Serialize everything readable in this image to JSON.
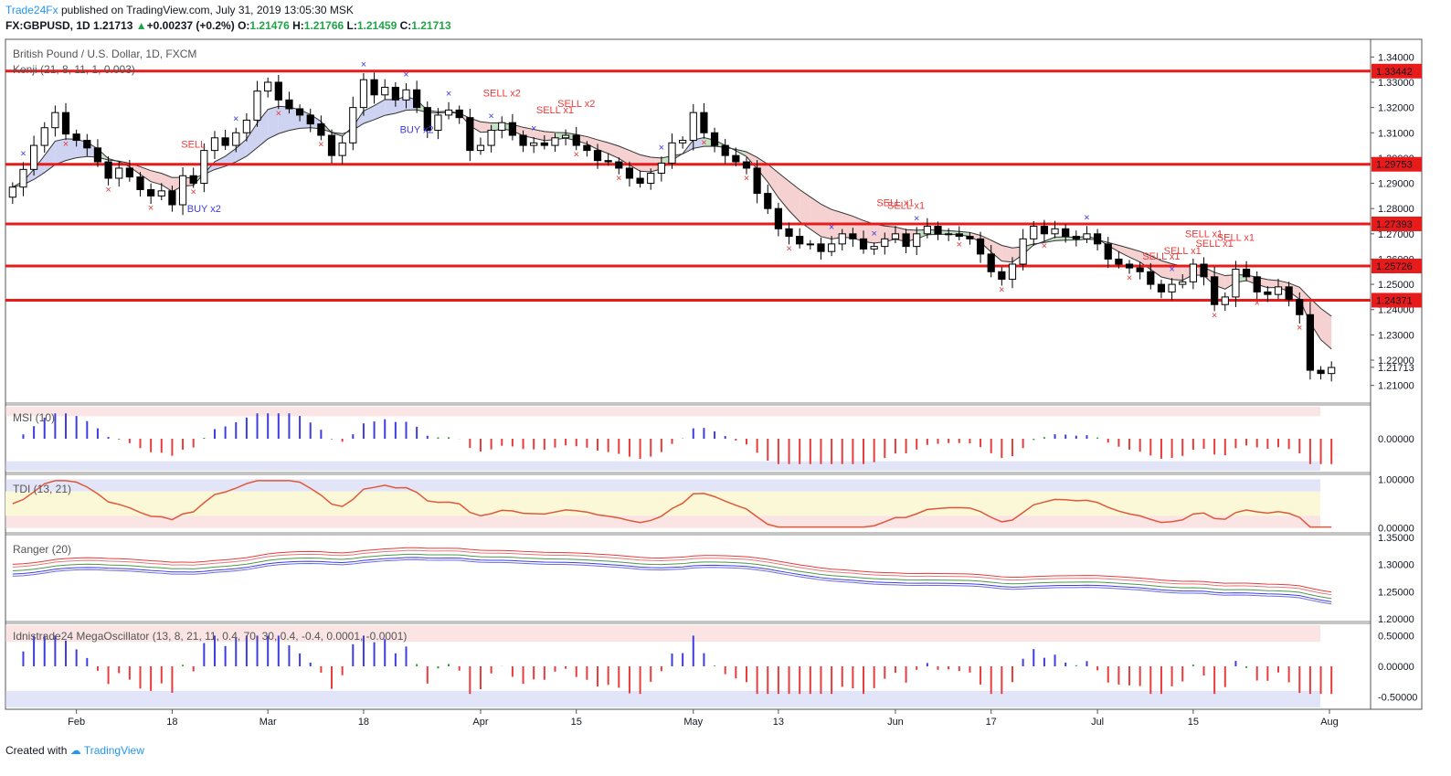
{
  "header": {
    "publisher": "Trade24Fx",
    "published_text": "published on TradingView.com, July 31, 2019 13:05:30 MSK",
    "symbol": "FX:GBPUSD, 1D",
    "last": "1.21713",
    "change": "+0.00237 (+0.2%)",
    "open": "1.21476",
    "high": "1.21766",
    "low": "1.21459",
    "close": "1.21713"
  },
  "footer": {
    "created_with": "Created with",
    "brand": "TradingView"
  },
  "chart_data": [
    {
      "type": "candlestick",
      "title": "British Pound / U.S. Dollar, 1D, FXCM",
      "indicator": "Kenji (21, 8, 11, 1, 0.003)",
      "ylim": [
        1.203,
        1.347
      ],
      "y_ticks": [
        "1.34000",
        "1.33000",
        "1.32000",
        "1.31000",
        "1.30000",
        "1.29000",
        "1.28000",
        "1.27000",
        "1.26000",
        "1.25000",
        "1.24000",
        "1.23000",
        "1.22000",
        "1.21000"
      ],
      "x_tick_labels": [
        "Feb",
        "18",
        "Mar",
        "18",
        "Apr",
        "15",
        "May",
        "13",
        "Jun",
        "17",
        "Jul",
        "15",
        "Aug"
      ],
      "last_price": "1.21713",
      "horizontal_levels": [
        "1.33442",
        "1.29753",
        "1.27393",
        "1.25726",
        "1.24371"
      ],
      "signals": [
        "SELL",
        "BUY x2",
        "SELL x2",
        "SELL x1",
        "SELL x2",
        "BUY x2",
        "SELL x1",
        "SELL x1",
        "SELL x1",
        "SELL x1",
        "SELL x1",
        "SELL x1",
        "SELL x1"
      ],
      "close": [
        1.2885,
        1.2955,
        1.305,
        1.312,
        1.318,
        1.3095,
        1.307,
        1.304,
        1.2985,
        1.292,
        1.296,
        1.2925,
        1.2875,
        1.285,
        1.287,
        1.2815,
        1.293,
        1.29,
        1.303,
        1.308,
        1.305,
        1.31,
        1.315,
        1.3265,
        1.33,
        1.323,
        1.3195,
        1.317,
        1.3135,
        1.309,
        1.301,
        1.306,
        1.32,
        1.331,
        1.325,
        1.328,
        1.323,
        1.327,
        1.32,
        1.311,
        1.317,
        1.319,
        1.316,
        1.303,
        1.305,
        1.311,
        1.314,
        1.309,
        1.305,
        1.306,
        1.305,
        1.308,
        1.309,
        1.305,
        1.303,
        1.299,
        1.2985,
        1.296,
        1.292,
        1.29,
        1.294,
        1.298,
        1.306,
        1.307,
        1.318,
        1.31,
        1.305,
        1.301,
        1.2985,
        1.296,
        1.286,
        1.28,
        1.272,
        1.269,
        1.266,
        1.266,
        1.263,
        1.266,
        1.27,
        1.268,
        1.264,
        1.265,
        1.268,
        1.27,
        1.265,
        1.27,
        1.273,
        1.27,
        1.27,
        1.269,
        1.268,
        1.262,
        1.255,
        1.252,
        1.258,
        1.268,
        1.273,
        1.27,
        1.272,
        1.269,
        1.268,
        1.27,
        1.266,
        1.26,
        1.258,
        1.2565,
        1.255,
        1.25,
        1.247,
        1.25,
        1.251,
        1.258,
        1.253,
        1.242,
        1.245,
        1.256,
        1.253,
        1.247,
        1.246,
        1.249,
        1.244,
        1.238,
        1.216,
        1.2147,
        1.2171
      ],
      "series_indicators": [
        {
          "name": "MSI (10)",
          "ylim": [
            -0.6,
            0.6
          ],
          "y_tick": "0.00000"
        },
        {
          "name": "TDI (13, 21)",
          "ylim": [
            -0.1,
            1.1
          ],
          "y_ticks": [
            "1.00000",
            "0.00000"
          ]
        },
        {
          "name": "Ranger (20)",
          "ylim": [
            1.195,
            1.355
          ],
          "y_ticks": [
            "1.35000",
            "1.30000",
            "1.25000",
            "1.20000"
          ]
        },
        {
          "name": "Idnistrade24 MegaOscillator (13, 8, 21, 11, 0.4, 70, 30, 0.4, -0.4, 0.0001, -0.0001)",
          "ylim": [
            -0.7,
            0.7
          ],
          "y_ticks": [
            "0.50000",
            "0.00000",
            "-0.50000"
          ]
        }
      ]
    }
  ],
  "colors": {
    "level_line": "#e81b1b",
    "up_candle": "#ffffff",
    "down_candle": "#000000",
    "band_up": "#c5cbf0",
    "band_down": "#f5c9c9",
    "band_green": "#b9dcb8",
    "hist_pos": "#3d3de0",
    "hist_neg": "#e83b3b",
    "signal_sell": "#e83b3b",
    "signal_buy": "#3d3de0",
    "price_label_bg": "#e81b1b"
  }
}
